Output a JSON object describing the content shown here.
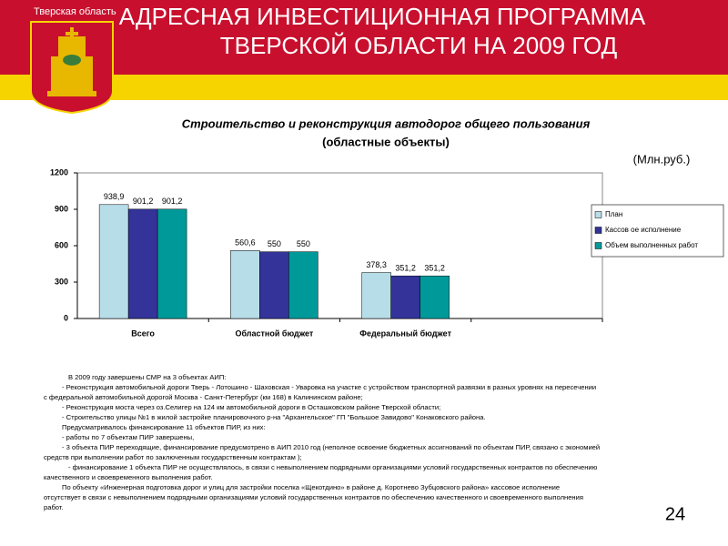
{
  "header": {
    "region": "Тверская область",
    "title_lines": [
      "АДРЕСНАЯ ИНВЕСТИЦИОННАЯ ПРОГРАММА",
      "ТВЕРСКОЙ ОБЛАСТИ НА 2009 ГОД"
    ]
  },
  "chart_data": {
    "type": "bar",
    "title_lines": [
      "Строительство и реконструкция автодорог общего пользования",
      "(областные объекты)"
    ],
    "unit_note": "(Млн.руб.)",
    "categories": [
      "Всего",
      "Областной бюджет",
      "Федеральный бюджет",
      null
    ],
    "series": [
      {
        "name": "План",
        "color": "#b7dde8",
        "values": [
          938.9,
          560.6,
          378.3,
          null
        ],
        "value_labels": [
          "938,9",
          "560,6",
          "378,3",
          null
        ]
      },
      {
        "name": "Кассов ое исполнение",
        "color": "#333399",
        "values": [
          901.2,
          550,
          351.2,
          null
        ],
        "value_labels": [
          "901,2",
          "550",
          "351,2",
          null
        ]
      },
      {
        "name": "Объем выполненных работ",
        "color": "#009999",
        "values": [
          901.2,
          550,
          351.2,
          null
        ],
        "value_labels": [
          "901,2",
          "550",
          "351,2",
          null
        ]
      }
    ],
    "ylim": [
      0,
      1200
    ],
    "yticks": [
      0,
      300,
      600,
      900,
      1200
    ],
    "grid": false,
    "legend": "right"
  },
  "text_lines": [
    "В 2009 году завершены СМР на 3 объектах АИП:",
    "- Реконструкция автомобильной дороги Тверь - Лотошино - Шаховская - Уваровка на участке с устройством транспортной развязки в разных уровнях на пересечении",
    "с федеральной автомобильной дорогой Москва - Санкт-Петербург (км 168) в Калининском районе;",
    "- Реконструкция моста через оз.Селигер на 124 км автомобильной дороги в Осташковском районе Тверской области;",
    "- Строительство улицы №1 в жилой застройке планировочного р-на \"Архангельское\" ГП \"Большое Завидово\" Конаковского района.",
    "Предусматривалось финансирование 11 объектов ПИР, из них:",
    "- работы по 7 объектам ПИР завершены,",
    "- 3 объекта ПИР переходящие, финансирование предусмотрено в АИП 2010 год (неполное освоение бюджетных ассигнований по объектам ПИР, связано с экономией",
    "средств при выполнении работ по заключенным государственным контрактам );",
    "- финансирование 1 объекта ПИР не осуществлялось, в связи с невыполнением подрядными организациями условий государственных контрактов по обеспечению",
    "качественного и своевременного выполнения работ.",
    "По объекту «Инженерная подготовка дорог и улиц для застройки поселка «Щекотдино» в районе д. Коротнево Зубцовского района» кассовое исполнение",
    "отсутствует в связи с невыполнением подрядными организациями условий государственных контрактов по обеспечению качественного и своевременного выполнения",
    "работ."
  ],
  "page_number": "24"
}
